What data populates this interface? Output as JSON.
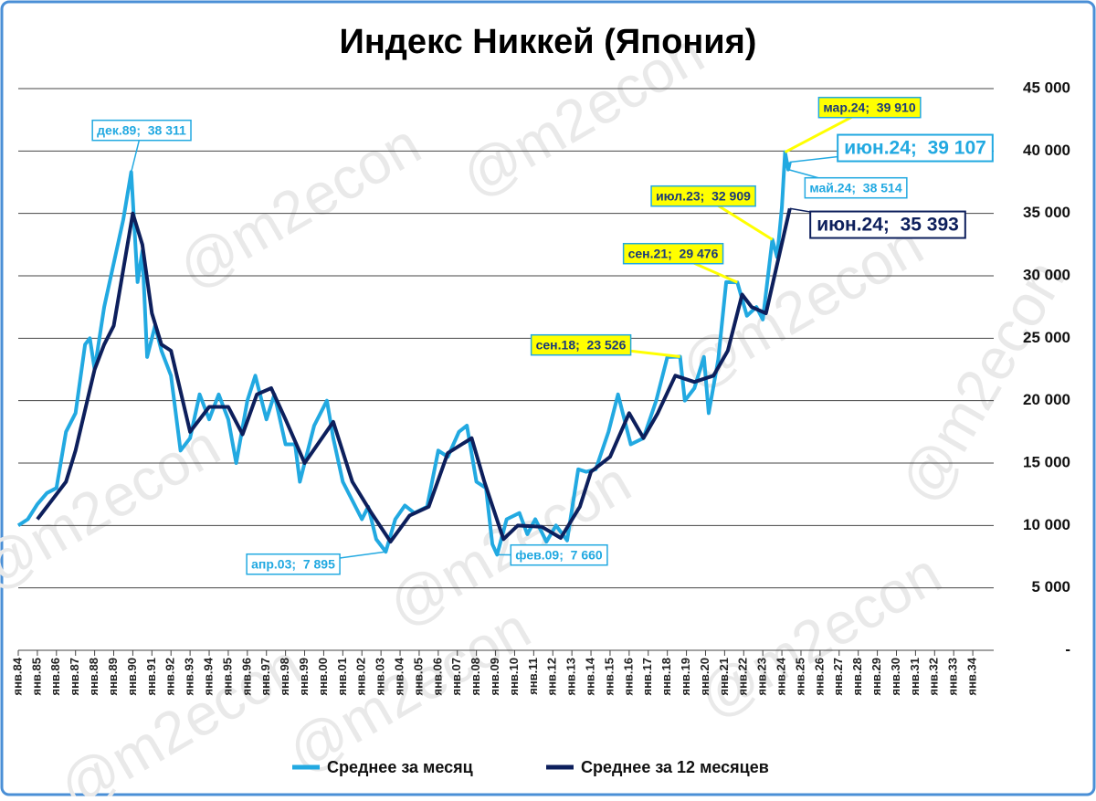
{
  "chart_data": {
    "type": "line",
    "title": "Индекс Никкей (Япония)",
    "watermark": "@m2econ",
    "xlim": [
      "1984-01",
      "2035-01"
    ],
    "xticks": [
      {
        "value": "1984-01",
        "label": "янв.84"
      },
      {
        "value": "1985-01",
        "label": "янв.85"
      },
      {
        "value": "1986-01",
        "label": "янв.86"
      },
      {
        "value": "1987-01",
        "label": "янв.87"
      },
      {
        "value": "1988-01",
        "label": "янв.88"
      },
      {
        "value": "1989-01",
        "label": "янв.89"
      },
      {
        "value": "1990-01",
        "label": "янв.90"
      },
      {
        "value": "1991-01",
        "label": "янв.91"
      },
      {
        "value": "1992-01",
        "label": "янв.92"
      },
      {
        "value": "1993-01",
        "label": "янв.93"
      },
      {
        "value": "1994-01",
        "label": "янв.94"
      },
      {
        "value": "1995-01",
        "label": "янв.95"
      },
      {
        "value": "1996-01",
        "label": "янв.96"
      },
      {
        "value": "1997-01",
        "label": "янв.97"
      },
      {
        "value": "1998-01",
        "label": "янв.98"
      },
      {
        "value": "1999-01",
        "label": "янв.99"
      },
      {
        "value": "2000-01",
        "label": "янв.00"
      },
      {
        "value": "2001-01",
        "label": "янв.01"
      },
      {
        "value": "2002-01",
        "label": "янв.02"
      },
      {
        "value": "2003-01",
        "label": "янв.03"
      },
      {
        "value": "2004-01",
        "label": "янв.04"
      },
      {
        "value": "2005-01",
        "label": "янв.05"
      },
      {
        "value": "2006-01",
        "label": "янв.06"
      },
      {
        "value": "2007-01",
        "label": "янв.07"
      },
      {
        "value": "2008-01",
        "label": "янв.08"
      },
      {
        "value": "2009-01",
        "label": "янв.09"
      },
      {
        "value": "2010-01",
        "label": "янв.10"
      },
      {
        "value": "2011-01",
        "label": "янв.11"
      },
      {
        "value": "2012-01",
        "label": "янв.12"
      },
      {
        "value": "2013-01",
        "label": "янв.13"
      },
      {
        "value": "2014-01",
        "label": "янв.14"
      },
      {
        "value": "2015-01",
        "label": "янв.15"
      },
      {
        "value": "2016-01",
        "label": "янв.16"
      },
      {
        "value": "2017-01",
        "label": "янв.17"
      },
      {
        "value": "2018-01",
        "label": "янв.18"
      },
      {
        "value": "2019-01",
        "label": "янв.19"
      },
      {
        "value": "2020-01",
        "label": "янв.20"
      },
      {
        "value": "2021-01",
        "label": "янв.21"
      },
      {
        "value": "2022-01",
        "label": "янв.22"
      },
      {
        "value": "2023-01",
        "label": "янв.23"
      },
      {
        "value": "2024-01",
        "label": "янв.24"
      },
      {
        "value": "2025-01",
        "label": "янв.25"
      },
      {
        "value": "2026-01",
        "label": "янв.26"
      },
      {
        "value": "2027-01",
        "label": "янв.27"
      },
      {
        "value": "2028-01",
        "label": "янв.28"
      },
      {
        "value": "2029-01",
        "label": "янв.29"
      },
      {
        "value": "2030-01",
        "label": "янв.30"
      },
      {
        "value": "2031-01",
        "label": "янв.31"
      },
      {
        "value": "2032-01",
        "label": "янв.32"
      },
      {
        "value": "2033-01",
        "label": "янв.33"
      },
      {
        "value": "2034-01",
        "label": "янв.34"
      }
    ],
    "ylim": [
      0,
      45000
    ],
    "yticks": [
      {
        "value": 0,
        "label": "-"
      },
      {
        "value": 5000,
        "label": "5 000"
      },
      {
        "value": 10000,
        "label": "10 000"
      },
      {
        "value": 15000,
        "label": "15 000"
      },
      {
        "value": 20000,
        "label": "20 000"
      },
      {
        "value": 25000,
        "label": "25 000"
      },
      {
        "value": 30000,
        "label": "30 000"
      },
      {
        "value": 35000,
        "label": "35 000"
      },
      {
        "value": 40000,
        "label": "40 000"
      },
      {
        "value": 45000,
        "label": "45 000"
      }
    ],
    "grid": true,
    "series": [
      {
        "name": "Среднее за месяц",
        "color": "#22a9e1",
        "x": [
          "1984-01",
          "1984-07",
          "1985-01",
          "1985-07",
          "1986-01",
          "1986-07",
          "1987-01",
          "1987-07",
          "1987-10",
          "1988-01",
          "1988-07",
          "1989-01",
          "1989-07",
          "1989-12",
          "1990-04",
          "1990-07",
          "1990-10",
          "1991-03",
          "1991-07",
          "1992-01",
          "1992-07",
          "1993-01",
          "1993-07",
          "1994-01",
          "1994-07",
          "1995-01",
          "1995-06",
          "1996-01",
          "1996-06",
          "1997-01",
          "1997-06",
          "1998-01",
          "1998-07",
          "1998-10",
          "1999-03",
          "1999-07",
          "2000-03",
          "2000-07",
          "2001-01",
          "2001-07",
          "2002-01",
          "2002-05",
          "2002-10",
          "2003-04",
          "2003-10",
          "2004-04",
          "2004-10",
          "2005-06",
          "2006-01",
          "2006-07",
          "2007-02",
          "2007-07",
          "2008-01",
          "2008-07",
          "2008-11",
          "2009-02",
          "2009-08",
          "2010-04",
          "2010-09",
          "2011-02",
          "2011-09",
          "2012-03",
          "2012-10",
          "2013-05",
          "2013-10",
          "2014-04",
          "2014-12",
          "2015-06",
          "2016-02",
          "2016-10",
          "2017-06",
          "2018-01",
          "2018-09",
          "2018-12",
          "2019-06",
          "2019-12",
          "2020-03",
          "2020-09",
          "2021-02",
          "2021-09",
          "2022-03",
          "2022-09",
          "2023-01",
          "2023-07",
          "2023-10",
          "2024-01",
          "2024-03",
          "2024-05",
          "2024-06"
        ],
        "values": [
          10000,
          10500,
          11700,
          12600,
          13000,
          17500,
          19000,
          24500,
          25000,
          22500,
          27500,
          31000,
          34500,
          38311,
          29500,
          32000,
          23500,
          26000,
          24000,
          22000,
          16000,
          17000,
          20500,
          18500,
          20500,
          18500,
          15000,
          20000,
          22000,
          18500,
          20500,
          16500,
          16500,
          13500,
          16000,
          18000,
          20000,
          17000,
          13500,
          12000,
          10500,
          11500,
          8900,
          7895,
          10500,
          11600,
          11000,
          11500,
          16000,
          15500,
          17500,
          18000,
          13500,
          13000,
          8500,
          7660,
          10500,
          11000,
          9300,
          10500,
          8700,
          10000,
          8800,
          14500,
          14300,
          14500,
          17500,
          20500,
          16500,
          17000,
          20000,
          23500,
          23526,
          20000,
          21000,
          23500,
          19000,
          23300,
          29500,
          29476,
          26800,
          27500,
          26500,
          32909,
          31500,
          35500,
          39910,
          38514,
          39107
        ]
      },
      {
        "name": "Среднее за 12 месяцев",
        "color": "#0d1f5c",
        "x": [
          "1985-01",
          "1986-01",
          "1986-07",
          "1987-01",
          "1988-01",
          "1988-07",
          "1989-01",
          "1990-01",
          "1990-07",
          "1991-01",
          "1991-07",
          "1992-01",
          "1993-01",
          "1993-07",
          "1994-01",
          "1995-01",
          "1995-10",
          "1996-07",
          "1997-04",
          "1998-01",
          "1999-01",
          "2000-07",
          "2001-07",
          "2002-07",
          "2003-07",
          "2004-07",
          "2005-07",
          "2006-07",
          "2007-10",
          "2008-06",
          "2009-06",
          "2010-03",
          "2011-06",
          "2012-06",
          "2013-06",
          "2014-01",
          "2015-01",
          "2016-01",
          "2016-10",
          "2017-07",
          "2018-06",
          "2019-06",
          "2020-06",
          "2021-03",
          "2021-12",
          "2022-06",
          "2023-03",
          "2024-06"
        ],
        "values": [
          10500,
          12500,
          13500,
          16000,
          22500,
          24500,
          26000,
          35000,
          32500,
          27000,
          24500,
          24000,
          17500,
          18500,
          19500,
          19500,
          17300,
          20500,
          21000,
          18500,
          15000,
          18300,
          13500,
          11000,
          8700,
          10800,
          11500,
          15800,
          17000,
          13500,
          8900,
          10000,
          9900,
          9000,
          11500,
          14300,
          15500,
          19000,
          17000,
          19000,
          22000,
          21500,
          22000,
          24000,
          28500,
          27500,
          27000,
          35393
        ]
      }
    ],
    "annotations": [
      {
        "text": "дек.89;  38 311",
        "x": "1989-12",
        "y": 38311
      },
      {
        "text": "апр.03;  7 895",
        "x": "2003-04",
        "y": 7895
      },
      {
        "text": "фев.09;  7 660",
        "x": "2009-02",
        "y": 7660
      },
      {
        "text": "сен.18;  23 526",
        "x": "2018-09",
        "y": 23526
      },
      {
        "text": "сен.21;  29 476",
        "x": "2021-09",
        "y": 29476
      },
      {
        "text": "июл.23;  32 909",
        "x": "2023-07",
        "y": 32909
      },
      {
        "text": "мар.24;  39 910",
        "x": "2024-03",
        "y": 39910
      },
      {
        "text": "май.24;  38 514",
        "x": "2024-05",
        "y": 38514
      },
      {
        "text": "июн.24;  39 107",
        "x": "2024-06",
        "y": 39107
      },
      {
        "text": "июн.24;  35 393",
        "x": "2024-06",
        "y": 35393
      }
    ]
  }
}
